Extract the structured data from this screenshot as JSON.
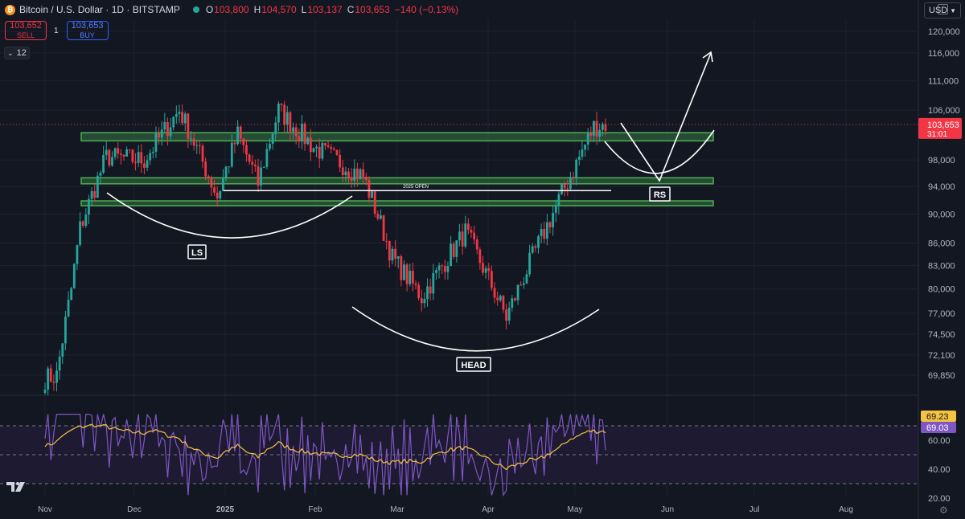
{
  "header": {
    "symbol": "Bitcoin / U.S. Dollar · 1D · BITSTAMP",
    "ohlc": [
      {
        "k": "O",
        "v": "103,800"
      },
      {
        "k": "H",
        "v": "104,570"
      },
      {
        "k": "L",
        "v": "103,137"
      },
      {
        "k": "C",
        "v": "103,653"
      }
    ],
    "change": "−140 (−0.13%)"
  },
  "trade": {
    "sell_price": "103,652",
    "sell_label": "SELL",
    "spread": "1",
    "buy_price": "103,653",
    "buy_label": "BUY"
  },
  "indicators_count": "12",
  "currency": "USD",
  "colors": {
    "bg": "#131722",
    "up": "#26a69a",
    "down": "#f23645",
    "zone_fill": "#2e5d3c",
    "zone_stroke": "#4caf50",
    "rsi_line": "#7e57c2",
    "rsi_ma": "#f5c242",
    "rsi_band": "#1f1b33"
  },
  "chart_data": [
    {
      "type": "candlestick",
      "title": "Bitcoin / U.S. Dollar",
      "timeframe": "1D",
      "exchange": "BITSTAMP",
      "price_axis": [
        "120,000",
        "116,000",
        "111,000",
        "106,000",
        "98,000",
        "94,000",
        "90,000",
        "86,000",
        "83,000",
        "80,000",
        "77,000",
        "74,500",
        "72,100",
        "69,850"
      ],
      "time_axis": [
        "Nov",
        "Dec",
        "2025",
        "Feb",
        "Mar",
        "Apr",
        "May",
        "Jun",
        "Jul",
        "Aug"
      ],
      "last_price": "103,653",
      "last_price_countdown": "31:01",
      "scale": "log",
      "key_levels": [
        {
          "label": "2025 OPEN",
          "price": 93400
        }
      ],
      "support_resistance_zones": [
        {
          "low": 101000,
          "high": 102300
        },
        {
          "low": 94400,
          "high": 95300
        },
        {
          "low": 91200,
          "high": 91900
        }
      ],
      "pattern": {
        "name": "head and shoulders",
        "labels": [
          "LS",
          "HEAD",
          "RS"
        ]
      },
      "candles_close_anchors": [
        {
          "date": "2024-11-01",
          "price": 69500
        },
        {
          "date": "2024-11-05",
          "price": 69800
        },
        {
          "date": "2024-11-10",
          "price": 80000
        },
        {
          "date": "2024-11-13",
          "price": 88000
        },
        {
          "date": "2024-11-22",
          "price": 98500
        },
        {
          "date": "2024-12-05",
          "price": 98000
        },
        {
          "date": "2024-12-17",
          "price": 106000
        },
        {
          "date": "2024-12-30",
          "price": 92500
        },
        {
          "date": "2025-01-06",
          "price": 102000
        },
        {
          "date": "2025-01-13",
          "price": 94500
        },
        {
          "date": "2025-01-20",
          "price": 106000
        },
        {
          "date": "2025-02-01",
          "price": 100000
        },
        {
          "date": "2025-02-18",
          "price": 95500
        },
        {
          "date": "2025-02-28",
          "price": 84000
        },
        {
          "date": "2025-03-10",
          "price": 79000
        },
        {
          "date": "2025-03-25",
          "price": 87500
        },
        {
          "date": "2025-04-08",
          "price": 76500
        },
        {
          "date": "2025-04-21",
          "price": 87500
        },
        {
          "date": "2025-05-01",
          "price": 96500
        },
        {
          "date": "2025-05-08",
          "price": 103300
        },
        {
          "date": "2025-05-12",
          "price": 103653
        }
      ]
    },
    {
      "type": "line",
      "title": "RSI",
      "y_axis": [
        "60.00",
        "40.00",
        "20.00"
      ],
      "ylim": [
        20,
        80
      ],
      "band": [
        30,
        70
      ],
      "series": [
        {
          "values": [
            69.23
          ]
        },
        {
          "values": [
            69.03
          ]
        }
      ]
    }
  ]
}
